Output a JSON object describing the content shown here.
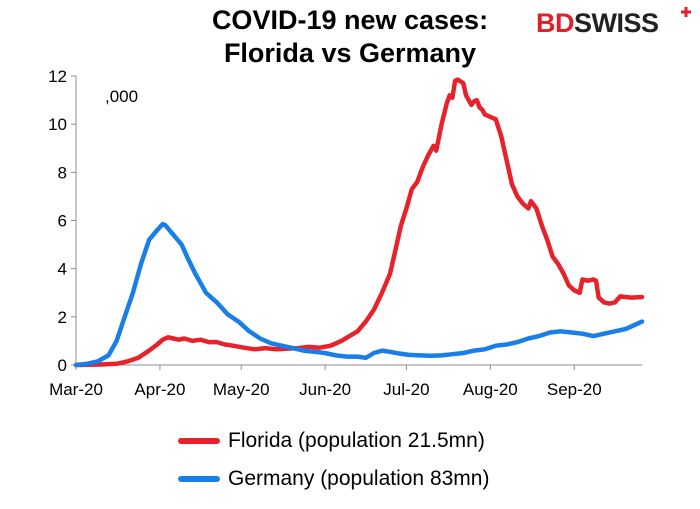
{
  "header": {
    "title_line1": "COVID-19  new cases:",
    "title_line2": "Florida vs Germany",
    "logo_part1": "BD",
    "logo_part2": "SWISS",
    "logo_mark": "+"
  },
  "chart_data": {
    "type": "line",
    "unit_label": ",000",
    "ylim": [
      0,
      12
    ],
    "yticks": [
      0,
      2,
      4,
      6,
      8,
      10,
      12
    ],
    "xlim": [
      "2020-03-01",
      "2020-09-26"
    ],
    "xticks": [
      {
        "date": "2020-03-01",
        "label": "Mar-20"
      },
      {
        "date": "2020-04-01",
        "label": "Apr-20"
      },
      {
        "date": "2020-05-01",
        "label": "May-20"
      },
      {
        "date": "2020-06-01",
        "label": "Jun-20"
      },
      {
        "date": "2020-07-01",
        "label": "Jul-20"
      },
      {
        "date": "2020-08-01",
        "label": "Aug-20"
      },
      {
        "date": "2020-09-01",
        "label": "Sep-20"
      }
    ],
    "legend_position": "bottom",
    "series": [
      {
        "name": "Florida (population 21.5mn)",
        "color": "#e8222b",
        "points": [
          [
            "2020-03-01",
            0.0
          ],
          [
            "2020-03-10",
            0.02
          ],
          [
            "2020-03-16",
            0.05
          ],
          [
            "2020-03-20",
            0.15
          ],
          [
            "2020-03-24",
            0.3
          ],
          [
            "2020-03-28",
            0.6
          ],
          [
            "2020-03-31",
            0.85
          ],
          [
            "2020-04-02",
            1.05
          ],
          [
            "2020-04-04",
            1.15
          ],
          [
            "2020-04-06",
            1.1
          ],
          [
            "2020-04-08",
            1.05
          ],
          [
            "2020-04-10",
            1.1
          ],
          [
            "2020-04-13",
            1.0
          ],
          [
            "2020-04-16",
            1.05
          ],
          [
            "2020-04-19",
            0.95
          ],
          [
            "2020-04-22",
            0.95
          ],
          [
            "2020-04-25",
            0.85
          ],
          [
            "2020-04-28",
            0.8
          ],
          [
            "2020-05-02",
            0.72
          ],
          [
            "2020-05-06",
            0.65
          ],
          [
            "2020-05-10",
            0.7
          ],
          [
            "2020-05-14",
            0.65
          ],
          [
            "2020-05-18",
            0.68
          ],
          [
            "2020-05-22",
            0.7
          ],
          [
            "2020-05-26",
            0.75
          ],
          [
            "2020-05-30",
            0.72
          ],
          [
            "2020-06-03",
            0.8
          ],
          [
            "2020-06-07",
            1.0
          ],
          [
            "2020-06-10",
            1.2
          ],
          [
            "2020-06-13",
            1.4
          ],
          [
            "2020-06-16",
            1.8
          ],
          [
            "2020-06-19",
            2.3
          ],
          [
            "2020-06-22",
            3.0
          ],
          [
            "2020-06-25",
            3.8
          ],
          [
            "2020-06-27",
            4.8
          ],
          [
            "2020-06-29",
            5.8
          ],
          [
            "2020-07-01",
            6.5
          ],
          [
            "2020-07-03",
            7.3
          ],
          [
            "2020-07-05",
            7.6
          ],
          [
            "2020-07-07",
            8.2
          ],
          [
            "2020-07-09",
            8.7
          ],
          [
            "2020-07-11",
            9.1
          ],
          [
            "2020-07-12",
            8.9
          ],
          [
            "2020-07-14",
            10.0
          ],
          [
            "2020-07-16",
            10.9
          ],
          [
            "2020-07-17",
            11.2
          ],
          [
            "2020-07-18",
            11.1
          ],
          [
            "2020-07-19",
            11.8
          ],
          [
            "2020-07-20",
            11.85
          ],
          [
            "2020-07-22",
            11.7
          ],
          [
            "2020-07-23",
            11.2
          ],
          [
            "2020-07-25",
            10.8
          ],
          [
            "2020-07-26",
            10.95
          ],
          [
            "2020-07-27",
            11.0
          ],
          [
            "2020-07-28",
            10.7
          ],
          [
            "2020-07-29",
            10.6
          ],
          [
            "2020-07-30",
            10.4
          ],
          [
            "2020-08-01",
            10.3
          ],
          [
            "2020-08-03",
            10.2
          ],
          [
            "2020-08-05",
            9.5
          ],
          [
            "2020-08-07",
            8.5
          ],
          [
            "2020-08-09",
            7.5
          ],
          [
            "2020-08-11",
            7.0
          ],
          [
            "2020-08-13",
            6.7
          ],
          [
            "2020-08-15",
            6.5
          ],
          [
            "2020-08-16",
            6.8
          ],
          [
            "2020-08-18",
            6.5
          ],
          [
            "2020-08-20",
            5.8
          ],
          [
            "2020-08-22",
            5.2
          ],
          [
            "2020-08-24",
            4.5
          ],
          [
            "2020-08-26",
            4.2
          ],
          [
            "2020-08-28",
            3.8
          ],
          [
            "2020-08-30",
            3.3
          ],
          [
            "2020-09-01",
            3.1
          ],
          [
            "2020-09-03",
            3.0
          ],
          [
            "2020-09-04",
            3.55
          ],
          [
            "2020-09-06",
            3.5
          ],
          [
            "2020-09-08",
            3.55
          ],
          [
            "2020-09-09",
            3.5
          ],
          [
            "2020-09-10",
            2.8
          ],
          [
            "2020-09-12",
            2.6
          ],
          [
            "2020-09-14",
            2.55
          ],
          [
            "2020-09-16",
            2.6
          ],
          [
            "2020-09-18",
            2.85
          ],
          [
            "2020-09-22",
            2.8
          ],
          [
            "2020-09-26",
            2.82
          ]
        ]
      },
      {
        "name": "Germany (population 83mn)",
        "color": "#1a7ee8",
        "points": [
          [
            "2020-03-01",
            0.0
          ],
          [
            "2020-03-05",
            0.05
          ],
          [
            "2020-03-09",
            0.15
          ],
          [
            "2020-03-13",
            0.4
          ],
          [
            "2020-03-16",
            1.0
          ],
          [
            "2020-03-19",
            2.0
          ],
          [
            "2020-03-22",
            3.0
          ],
          [
            "2020-03-25",
            4.2
          ],
          [
            "2020-03-28",
            5.2
          ],
          [
            "2020-03-31",
            5.6
          ],
          [
            "2020-04-02",
            5.85
          ],
          [
            "2020-04-03",
            5.8
          ],
          [
            "2020-04-06",
            5.4
          ],
          [
            "2020-04-09",
            5.0
          ],
          [
            "2020-04-11",
            4.5
          ],
          [
            "2020-04-14",
            3.8
          ],
          [
            "2020-04-18",
            3.0
          ],
          [
            "2020-04-22",
            2.6
          ],
          [
            "2020-04-26",
            2.1
          ],
          [
            "2020-04-30",
            1.8
          ],
          [
            "2020-05-04",
            1.4
          ],
          [
            "2020-05-08",
            1.1
          ],
          [
            "2020-05-12",
            0.9
          ],
          [
            "2020-05-16",
            0.8
          ],
          [
            "2020-05-20",
            0.7
          ],
          [
            "2020-05-24",
            0.6
          ],
          [
            "2020-05-28",
            0.55
          ],
          [
            "2020-06-01",
            0.5
          ],
          [
            "2020-06-05",
            0.4
          ],
          [
            "2020-06-09",
            0.35
          ],
          [
            "2020-06-13",
            0.35
          ],
          [
            "2020-06-16",
            0.3
          ],
          [
            "2020-06-19",
            0.5
          ],
          [
            "2020-06-22",
            0.6
          ],
          [
            "2020-06-25",
            0.55
          ],
          [
            "2020-06-28",
            0.48
          ],
          [
            "2020-07-02",
            0.42
          ],
          [
            "2020-07-06",
            0.4
          ],
          [
            "2020-07-10",
            0.38
          ],
          [
            "2020-07-14",
            0.4
          ],
          [
            "2020-07-18",
            0.45
          ],
          [
            "2020-07-22",
            0.5
          ],
          [
            "2020-07-26",
            0.6
          ],
          [
            "2020-07-30",
            0.65
          ],
          [
            "2020-08-03",
            0.8
          ],
          [
            "2020-08-07",
            0.85
          ],
          [
            "2020-08-11",
            0.95
          ],
          [
            "2020-08-15",
            1.1
          ],
          [
            "2020-08-19",
            1.2
          ],
          [
            "2020-08-23",
            1.35
          ],
          [
            "2020-08-27",
            1.4
          ],
          [
            "2020-08-31",
            1.35
          ],
          [
            "2020-09-04",
            1.3
          ],
          [
            "2020-09-08",
            1.2
          ],
          [
            "2020-09-12",
            1.3
          ],
          [
            "2020-09-16",
            1.4
          ],
          [
            "2020-09-20",
            1.5
          ],
          [
            "2020-09-24",
            1.7
          ],
          [
            "2020-09-26",
            1.8
          ]
        ]
      }
    ]
  }
}
